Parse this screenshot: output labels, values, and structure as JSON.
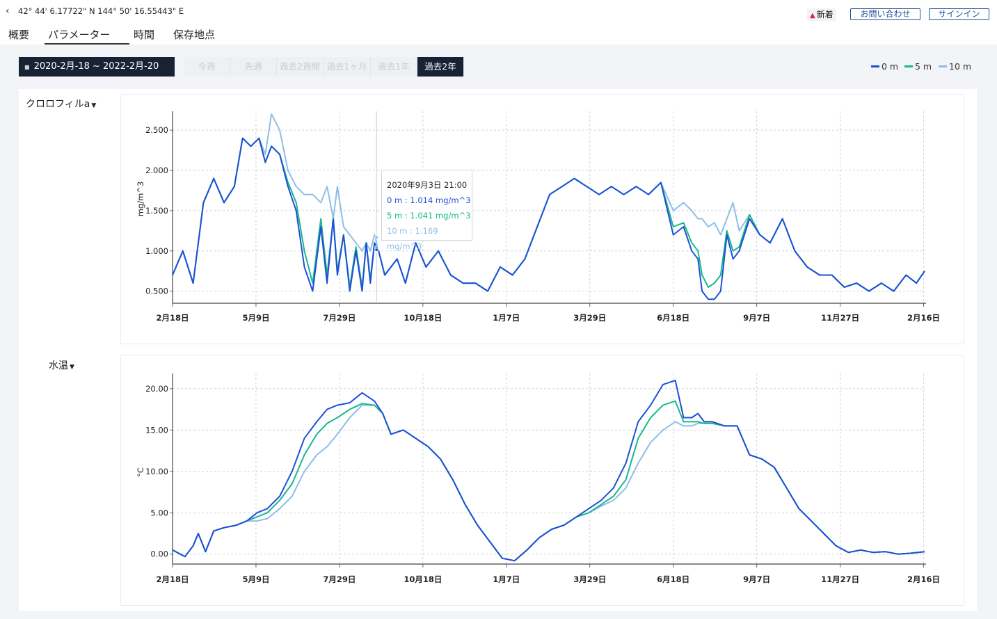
{
  "header": {
    "back_icon": "chevron-left-icon",
    "coordinates": "42° 44' 6.17722\" N 144° 50' 16.55443\" E",
    "news_label": "新着",
    "contact_label": "お問い合わせ",
    "signin_label": "サインイン"
  },
  "tabs": [
    {
      "label": "概要",
      "active": false
    },
    {
      "label": "パラメーター",
      "active": true
    },
    {
      "label": "時間",
      "active": false
    },
    {
      "label": "保存地点",
      "active": false
    }
  ],
  "date_range": "2020-2月-18 ~ 2022-2月-20",
  "range_buttons": [
    {
      "label": "今週",
      "active": false
    },
    {
      "label": "先週",
      "active": false
    },
    {
      "label": "過去2週間",
      "active": false
    },
    {
      "label": "過去1ヶ月",
      "active": false
    },
    {
      "label": "過去1年",
      "active": false
    },
    {
      "label": "過去2年",
      "active": true
    }
  ],
  "legend": [
    {
      "label": "0 m",
      "color": "#1e4fd6"
    },
    {
      "label": "5 m",
      "color": "#17b88d"
    },
    {
      "label": "10 m",
      "color": "#8ebee8"
    }
  ],
  "tooltip": {
    "title": "2020年9月3日 21:00",
    "rows": [
      {
        "text": "0 m : 1.014 mg/m^3",
        "color": "#1e4fd6"
      },
      {
        "text": "5 m : 1.041 mg/m^3",
        "color": "#17b88d"
      },
      {
        "text": "10 m : 1.169 mg/m^3",
        "color": "#8ebee8"
      }
    ]
  },
  "chart_data": [
    {
      "type": "line",
      "param_label": "クロロフィルa",
      "title": "クロロフィルa",
      "ylabel": "mg/m^3",
      "ylim": [
        0.35,
        2.7
      ],
      "yticks": [
        0.5,
        1.0,
        1.5,
        2.0,
        2.5
      ],
      "ytick_labels": [
        "0.500",
        "1.000",
        "1.500",
        "2.000",
        "2.500"
      ],
      "xlim": [
        0,
        730
      ],
      "xticks": [
        0,
        81,
        162,
        243,
        324,
        405,
        486,
        567,
        648,
        729
      ],
      "xtick_labels": [
        "2月18日",
        "5月9日",
        "7月29日",
        "10月18日",
        "1月7日",
        "3月29日",
        "6月18日",
        "9月7日",
        "11月27日",
        "2月16日"
      ],
      "cursor_x": 198,
      "series": [
        {
          "name": "0 m",
          "color": "#1e4fd6",
          "x": [
            0,
            10,
            20,
            30,
            40,
            50,
            60,
            68,
            76,
            84,
            90,
            96,
            104,
            112,
            120,
            128,
            136,
            144,
            150,
            156,
            160,
            166,
            172,
            178,
            184,
            188,
            192,
            196,
            200,
            206,
            212,
            218,
            226,
            236,
            246,
            258,
            270,
            282,
            294,
            306,
            318,
            330,
            342,
            354,
            366,
            378,
            390,
            402,
            414,
            426,
            438,
            450,
            462,
            474,
            486,
            496,
            504,
            510,
            514,
            520,
            526,
            532,
            538,
            544,
            550,
            560,
            570,
            580,
            592,
            604,
            616,
            628,
            640,
            652,
            664,
            676,
            688,
            700,
            712,
            722,
            730
          ],
          "y": [
            0.7,
            1.0,
            0.6,
            1.6,
            1.9,
            1.6,
            1.8,
            2.4,
            2.3,
            2.4,
            2.1,
            2.3,
            2.2,
            1.8,
            1.5,
            0.8,
            0.5,
            1.3,
            0.6,
            1.4,
            0.7,
            1.2,
            0.5,
            1.0,
            0.5,
            1.1,
            0.6,
            1.1,
            1.0,
            0.7,
            0.8,
            0.9,
            0.6,
            1.1,
            0.8,
            1.0,
            0.7,
            0.6,
            0.6,
            0.5,
            0.8,
            0.7,
            0.9,
            1.3,
            1.7,
            1.8,
            1.9,
            1.8,
            1.7,
            1.8,
            1.7,
            1.8,
            1.7,
            1.85,
            1.2,
            1.3,
            1.0,
            0.9,
            0.5,
            0.4,
            0.4,
            0.5,
            1.2,
            0.9,
            1.0,
            1.4,
            1.2,
            1.1,
            1.4,
            1.0,
            0.8,
            0.7,
            0.7,
            0.55,
            0.6,
            0.5,
            0.6,
            0.5,
            0.7,
            0.6,
            0.75
          ]
        },
        {
          "name": "5 m",
          "color": "#17b88d",
          "x": [
            0,
            10,
            20,
            30,
            40,
            50,
            60,
            68,
            76,
            84,
            90,
            96,
            104,
            112,
            120,
            128,
            136,
            144,
            150,
            156,
            160,
            166,
            172,
            178,
            184,
            188,
            192,
            196,
            200,
            206,
            212,
            218,
            226,
            236,
            246,
            258,
            270,
            282,
            294,
            306,
            318,
            330,
            342,
            354,
            366,
            378,
            390,
            402,
            414,
            426,
            438,
            450,
            462,
            474,
            486,
            496,
            504,
            510,
            514,
            520,
            526,
            532,
            538,
            544,
            550,
            560,
            570,
            580,
            592,
            604,
            616,
            628,
            640,
            652,
            664,
            676,
            688,
            700,
            712,
            722,
            730
          ],
          "y": [
            0.7,
            1.0,
            0.6,
            1.6,
            1.9,
            1.6,
            1.8,
            2.4,
            2.3,
            2.4,
            2.1,
            2.3,
            2.2,
            1.85,
            1.6,
            1.0,
            0.6,
            1.4,
            0.7,
            1.4,
            0.75,
            1.2,
            0.55,
            1.05,
            0.55,
            1.1,
            0.65,
            1.1,
            1.0,
            0.7,
            0.8,
            0.9,
            0.6,
            1.1,
            0.8,
            1.0,
            0.7,
            0.6,
            0.6,
            0.5,
            0.8,
            0.7,
            0.9,
            1.3,
            1.7,
            1.8,
            1.9,
            1.8,
            1.7,
            1.8,
            1.7,
            1.8,
            1.7,
            1.85,
            1.3,
            1.35,
            1.1,
            1.0,
            0.7,
            0.55,
            0.6,
            0.7,
            1.25,
            1.0,
            1.05,
            1.45,
            1.2,
            1.1,
            1.4,
            1.0,
            0.8,
            0.7,
            0.7,
            0.55,
            0.6,
            0.5,
            0.6,
            0.5,
            0.7,
            0.6,
            0.75
          ]
        },
        {
          "name": "10 m",
          "color": "#8ebee8",
          "x": [
            0,
            10,
            20,
            30,
            40,
            50,
            60,
            68,
            76,
            84,
            90,
            96,
            104,
            112,
            120,
            128,
            136,
            144,
            150,
            156,
            160,
            166,
            172,
            178,
            184,
            188,
            192,
            196,
            200,
            206,
            212,
            218,
            226,
            236,
            246,
            258,
            270,
            282,
            294,
            306,
            318,
            330,
            342,
            354,
            366,
            378,
            390,
            402,
            414,
            426,
            438,
            450,
            462,
            474,
            486,
            496,
            504,
            510,
            514,
            520,
            526,
            532,
            538,
            544,
            550,
            560,
            570,
            580,
            592,
            604,
            616,
            628,
            640,
            652,
            664,
            676,
            688,
            700,
            712,
            722,
            730
          ],
          "y": [
            0.7,
            1.0,
            0.6,
            1.6,
            1.9,
            1.6,
            1.8,
            2.4,
            2.3,
            2.4,
            2.2,
            2.7,
            2.5,
            2.0,
            1.8,
            1.7,
            1.7,
            1.6,
            1.8,
            1.4,
            1.8,
            1.3,
            1.2,
            1.1,
            1.0,
            1.1,
            1.0,
            1.2,
            1.0,
            0.7,
            0.8,
            0.9,
            0.6,
            1.1,
            0.8,
            1.0,
            0.7,
            0.6,
            0.6,
            0.5,
            0.8,
            0.7,
            0.9,
            1.3,
            1.7,
            1.8,
            1.9,
            1.8,
            1.7,
            1.8,
            1.7,
            1.8,
            1.7,
            1.85,
            1.5,
            1.6,
            1.5,
            1.4,
            1.4,
            1.3,
            1.35,
            1.2,
            1.4,
            1.6,
            1.25,
            1.45,
            1.2,
            1.1,
            1.4,
            1.0,
            0.8,
            0.7,
            0.7,
            0.55,
            0.6,
            0.5,
            0.6,
            0.5,
            0.7,
            0.6,
            0.75
          ]
        }
      ]
    },
    {
      "type": "line",
      "param_label": "水温",
      "title": "水温",
      "ylabel": "°C",
      "ylim": [
        -1.2,
        21.5
      ],
      "yticks": [
        0,
        5,
        10,
        15,
        20
      ],
      "ytick_labels": [
        "0.00",
        "5.00",
        "10.00",
        "15.00",
        "20.00"
      ],
      "xlim": [
        0,
        730
      ],
      "xticks": [
        0,
        81,
        162,
        243,
        324,
        405,
        486,
        567,
        648,
        729
      ],
      "xtick_labels": [
        "2月18日",
        "5月9日",
        "7月29日",
        "10月18日",
        "1月7日",
        "3月29日",
        "6月18日",
        "9月7日",
        "11月27日",
        "2月16日"
      ],
      "series": [
        {
          "name": "0 m",
          "color": "#1e4fd6",
          "x": [
            0,
            12,
            20,
            25,
            32,
            40,
            50,
            62,
            72,
            82,
            92,
            104,
            116,
            128,
            140,
            150,
            160,
            172,
            184,
            196,
            204,
            212,
            224,
            236,
            248,
            260,
            272,
            284,
            296,
            308,
            320,
            332,
            344,
            356,
            368,
            380,
            392,
            404,
            416,
            428,
            440,
            452,
            464,
            476,
            488,
            496,
            504,
            510,
            516,
            524,
            536,
            548,
            560,
            572,
            584,
            596,
            608,
            620,
            632,
            644,
            656,
            668,
            680,
            692,
            704,
            716,
            730
          ],
          "y": [
            0.5,
            -0.3,
            1.0,
            2.5,
            0.3,
            2.8,
            3.2,
            3.5,
            4.0,
            5.0,
            5.5,
            7.0,
            10.0,
            14.0,
            16.0,
            17.5,
            18.0,
            18.3,
            19.5,
            18.5,
            17.0,
            14.5,
            15.0,
            14.0,
            13.0,
            11.5,
            9.0,
            6.0,
            3.5,
            1.5,
            -0.5,
            -0.8,
            0.5,
            2.0,
            3.0,
            3.5,
            4.5,
            5.5,
            6.5,
            8.0,
            11.0,
            16.0,
            18.0,
            20.5,
            21.0,
            16.5,
            16.5,
            17.0,
            16.0,
            16.0,
            15.5,
            15.5,
            12.0,
            11.5,
            10.5,
            8.0,
            5.5,
            4.0,
            2.5,
            1.0,
            0.2,
            0.5,
            0.2,
            0.3,
            0.0,
            0.1,
            0.3
          ]
        },
        {
          "name": "5 m",
          "color": "#17b88d",
          "x": [
            0,
            12,
            20,
            25,
            32,
            40,
            50,
            62,
            72,
            82,
            92,
            104,
            116,
            128,
            140,
            150,
            160,
            172,
            184,
            196,
            204,
            212,
            224,
            236,
            248,
            260,
            272,
            284,
            296,
            308,
            320,
            332,
            344,
            356,
            368,
            380,
            392,
            404,
            416,
            428,
            440,
            452,
            464,
            476,
            488,
            496,
            504,
            510,
            516,
            524,
            536,
            548,
            560,
            572,
            584,
            596,
            608,
            620,
            632,
            644,
            656,
            668,
            680,
            692,
            704,
            716,
            730
          ],
          "y": [
            0.5,
            -0.3,
            1.0,
            2.5,
            0.3,
            2.8,
            3.2,
            3.5,
            4.0,
            4.5,
            5.0,
            6.5,
            8.5,
            12.0,
            14.5,
            15.8,
            16.5,
            17.5,
            18.2,
            18.0,
            17.0,
            14.5,
            15.0,
            14.0,
            13.0,
            11.5,
            9.0,
            6.0,
            3.5,
            1.5,
            -0.5,
            -0.8,
            0.5,
            2.0,
            3.0,
            3.5,
            4.5,
            5.0,
            6.0,
            7.0,
            9.0,
            14.0,
            16.5,
            18.0,
            18.5,
            16.0,
            16.0,
            16.0,
            15.8,
            15.8,
            15.5,
            15.5,
            12.0,
            11.5,
            10.5,
            8.0,
            5.5,
            4.0,
            2.5,
            1.0,
            0.2,
            0.5,
            0.2,
            0.3,
            0.0,
            0.1,
            0.3
          ]
        },
        {
          "name": "10 m",
          "color": "#8ebee8",
          "x": [
            0,
            12,
            20,
            25,
            32,
            40,
            50,
            62,
            72,
            82,
            92,
            104,
            116,
            128,
            140,
            150,
            160,
            172,
            184,
            196,
            204,
            212,
            224,
            236,
            248,
            260,
            272,
            284,
            296,
            308,
            320,
            332,
            344,
            356,
            368,
            380,
            392,
            404,
            416,
            428,
            440,
            452,
            464,
            476,
            488,
            496,
            504,
            510,
            516,
            524,
            536,
            548,
            560,
            572,
            584,
            596,
            608,
            620,
            632,
            644,
            656,
            668,
            680,
            692,
            704,
            716,
            730
          ],
          "y": [
            0.5,
            -0.3,
            1.0,
            2.5,
            0.3,
            2.8,
            3.2,
            3.5,
            4.0,
            4.0,
            4.3,
            5.5,
            7.0,
            10.0,
            12.0,
            13.0,
            14.5,
            16.5,
            18.0,
            18.0,
            17.0,
            14.5,
            15.0,
            14.0,
            13.0,
            11.5,
            9.0,
            6.0,
            3.5,
            1.5,
            -0.5,
            -0.8,
            0.5,
            2.0,
            3.0,
            3.5,
            4.5,
            5.0,
            5.8,
            6.5,
            8.0,
            11.0,
            13.5,
            15.0,
            16.0,
            15.5,
            15.5,
            15.8,
            15.8,
            15.8,
            15.5,
            15.5,
            12.0,
            11.5,
            10.5,
            8.0,
            5.5,
            4.0,
            2.5,
            1.0,
            0.2,
            0.5,
            0.2,
            0.3,
            0.0,
            0.1,
            0.3
          ]
        }
      ]
    }
  ]
}
